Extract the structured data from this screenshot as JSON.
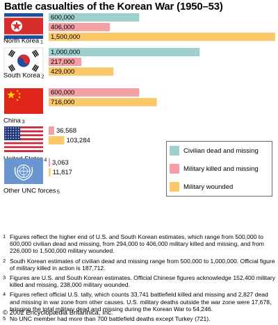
{
  "title": "Battle casualties of the Korean War (1950–53)",
  "colors": {
    "civilian": "#9fd0d0",
    "military_killed": "#f4a0a4",
    "military_wounded": "#fcc96a"
  },
  "chart_data": {
    "type": "bar",
    "orientation": "horizontal",
    "title": "Battle casualties of the Korean War (1950–53)",
    "legend_position": "right",
    "series": [
      {
        "name": "Civilian dead and missing",
        "color": "#9fd0d0"
      },
      {
        "name": "Military killed and missing",
        "color": "#f4a0a4"
      },
      {
        "name": "Military wounded",
        "color": "#fcc96a"
      }
    ],
    "groups": [
      {
        "country": "North Korea",
        "footnote": "1",
        "flag": "north-korea",
        "bars": [
          {
            "series": 0,
            "value": 600000,
            "label": "600,000"
          },
          {
            "series": 1,
            "value": 406000,
            "label": "406,000"
          },
          {
            "series": 2,
            "value": 1500000,
            "label": "1,500,000"
          }
        ]
      },
      {
        "country": "South Korea",
        "footnote": "2",
        "flag": "south-korea",
        "bars": [
          {
            "series": 0,
            "value": 1000000,
            "label": "1,000,000"
          },
          {
            "series": 1,
            "value": 217000,
            "label": "217,000"
          },
          {
            "series": 2,
            "value": 429000,
            "label": "429,000"
          }
        ]
      },
      {
        "country": "China",
        "footnote": "3",
        "flag": "china",
        "bars": [
          {
            "series": 1,
            "value": 600000,
            "label": "600,000"
          },
          {
            "series": 2,
            "value": 716000,
            "label": "716,000"
          }
        ]
      },
      {
        "country": "United States",
        "footnote": "4",
        "flag": "united-states",
        "bars": [
          {
            "series": 1,
            "value": 36568,
            "label": "36,568"
          },
          {
            "series": 2,
            "value": 103284,
            "label": "103,284"
          }
        ]
      },
      {
        "country": "Other UNC forces",
        "footnote": "5",
        "flag": "united-nations",
        "bars": [
          {
            "series": 1,
            "value": 3063,
            "label": "3,063"
          },
          {
            "series": 2,
            "value": 11817,
            "label": "11,817"
          }
        ]
      }
    ]
  },
  "notes": [
    {
      "num": "1",
      "text": "Figures reflect the higher end of U.S. and South Korean estimates, which range from 500,000 to 600,000 civilian dead and missing, from 294,000 to 406,000 military killed and missing, and from 226,000 to 1,500,000 military wounded."
    },
    {
      "num": "2",
      "text": "South Korean estimates of civilian dead and missing range from 500,000 to 1,000,000. Official figure of military killed in action is 187,712."
    },
    {
      "num": "3",
      "text": "Figures are U.S. and South Korean estimates. Official Chinese figures acknowledge 152,400 military killed and missing, 238,000 military wounded."
    },
    {
      "num": "4",
      "text": "Figures reflect official U.S. tally, which counts 33,741 battlefield killed and missing and 2,827 dead and missing in war zone from other causes. U.S. military deaths outside the war zone were 17,678, bringing the total military dead and missing during the Korean War to 54,246."
    },
    {
      "num": "5",
      "text": "No UNC member had more than 700 battlefield deaths except Turkey (721)."
    }
  ],
  "copyright": "© 2002 Encyclopædia Britannica, Inc."
}
